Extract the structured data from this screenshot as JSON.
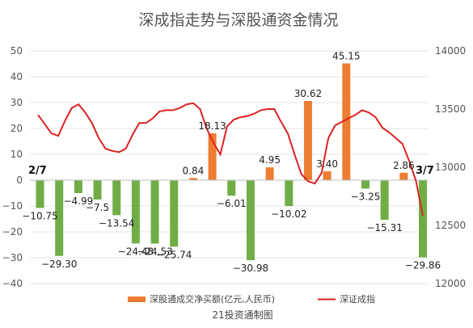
{
  "chart_data": {
    "type": "bar",
    "title": "深成指走势与深股通资金情况",
    "source": "21投资通制图",
    "date_start": "2/7",
    "date_end": "3/7",
    "yleft": {
      "min": -40,
      "max": 50,
      "step": 10,
      "ticks": [
        "−40",
        "−30",
        "−20",
        "−10",
        "0",
        "10",
        "20",
        "30",
        "40",
        "50"
      ]
    },
    "yright": {
      "min": 12000,
      "max": 14000,
      "step": 500,
      "ticks": [
        "12000",
        "12500",
        "13000",
        "13500",
        "14000"
      ]
    },
    "series": [
      {
        "name": "深股通成交净买额(亿元,人民币)",
        "type": "bar",
        "color": "#ed7d31",
        "negative_color": "#70ad47",
        "values": [
          -10.75,
          -29.3,
          -4.99,
          -7.5,
          -13.54,
          -24.48,
          -24.53,
          -25.74,
          0.84,
          18.13,
          -6.01,
          -30.98,
          4.95,
          -10.02,
          30.62,
          3.4,
          45.15,
          -3.25,
          -15.31,
          2.86,
          -29.86
        ],
        "labels": [
          "−10.75",
          "−29.30",
          "−4.99",
          "−7.5",
          "−13.54",
          "−24.48",
          "−24.53",
          "−25.74",
          "0.84",
          "18.13",
          "−6.01",
          "−30.98",
          "4.95",
          "−10.02",
          "30.62",
          "3.40",
          "45.15",
          "−3.25",
          "−15.31",
          "2.86",
          "−29.86"
        ]
      },
      {
        "name": "深证成指",
        "type": "line",
        "axis": "right",
        "color": "#dd2222",
        "values": [
          13450,
          13370,
          13290,
          13270,
          13400,
          13510,
          13540,
          13470,
          13380,
          13250,
          13160,
          13140,
          13130,
          13160,
          13280,
          13380,
          13380,
          13420,
          13480,
          13490,
          13490,
          13510,
          13540,
          13550,
          13500,
          13330,
          13210,
          13110,
          13350,
          13410,
          13430,
          13440,
          13460,
          13490,
          13500,
          13500,
          13390,
          13290,
          13110,
          12940,
          12880,
          12860,
          12950,
          13250,
          13360,
          13390,
          13420,
          13450,
          13490,
          13470,
          13430,
          13340,
          13300,
          13250,
          13200,
          13050,
          12880,
          12580
        ]
      }
    ]
  }
}
